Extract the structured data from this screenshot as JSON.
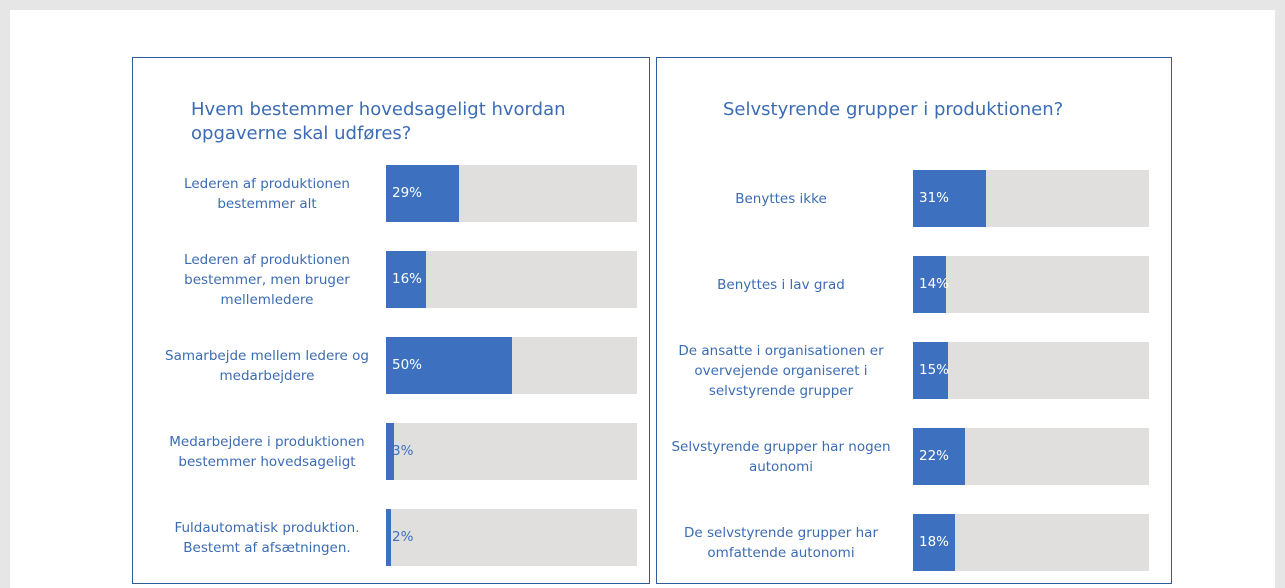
{
  "chart_data": [
    {
      "type": "bar",
      "orientation": "horizontal",
      "title": "Hvem bestemmer hovedsageligt hvordan opgaverne skal udføres?",
      "categories": [
        "Lederen af produktionen bestemmer alt",
        "Lederen af produktionen bestemmer, men bruger mellemledere",
        "Samarbejde mellem ledere og medarbejdere",
        "Medarbejdere i produktionen bestemmer hovedsageligt",
        "Fuldautomatisk produktion. Bestemt af afsætningen."
      ],
      "values": [
        29,
        16,
        50,
        3,
        2
      ],
      "value_labels": [
        "29%",
        "16%",
        "50%",
        "3%",
        "2%"
      ],
      "color": "#3d70bf",
      "xlim": [
        0,
        100
      ]
    },
    {
      "type": "bar",
      "orientation": "horizontal",
      "title": "Selvstyrende grupper i produktionen?",
      "categories": [
        "Benyttes ikke",
        "Benyttes i lav grad",
        "De ansatte i organisationen er overvejende organiseret i selvstyrende grupper",
        "Selvstyrende grupper har nogen autonomi",
        "De selvstyrende grupper har omfattende autonomi"
      ],
      "values": [
        31,
        14,
        15,
        22,
        18
      ],
      "value_labels": [
        "31%",
        "14%",
        "15%",
        "22%",
        "18%"
      ],
      "color": "#3d70bf",
      "xlim": [
        0,
        100
      ]
    }
  ]
}
